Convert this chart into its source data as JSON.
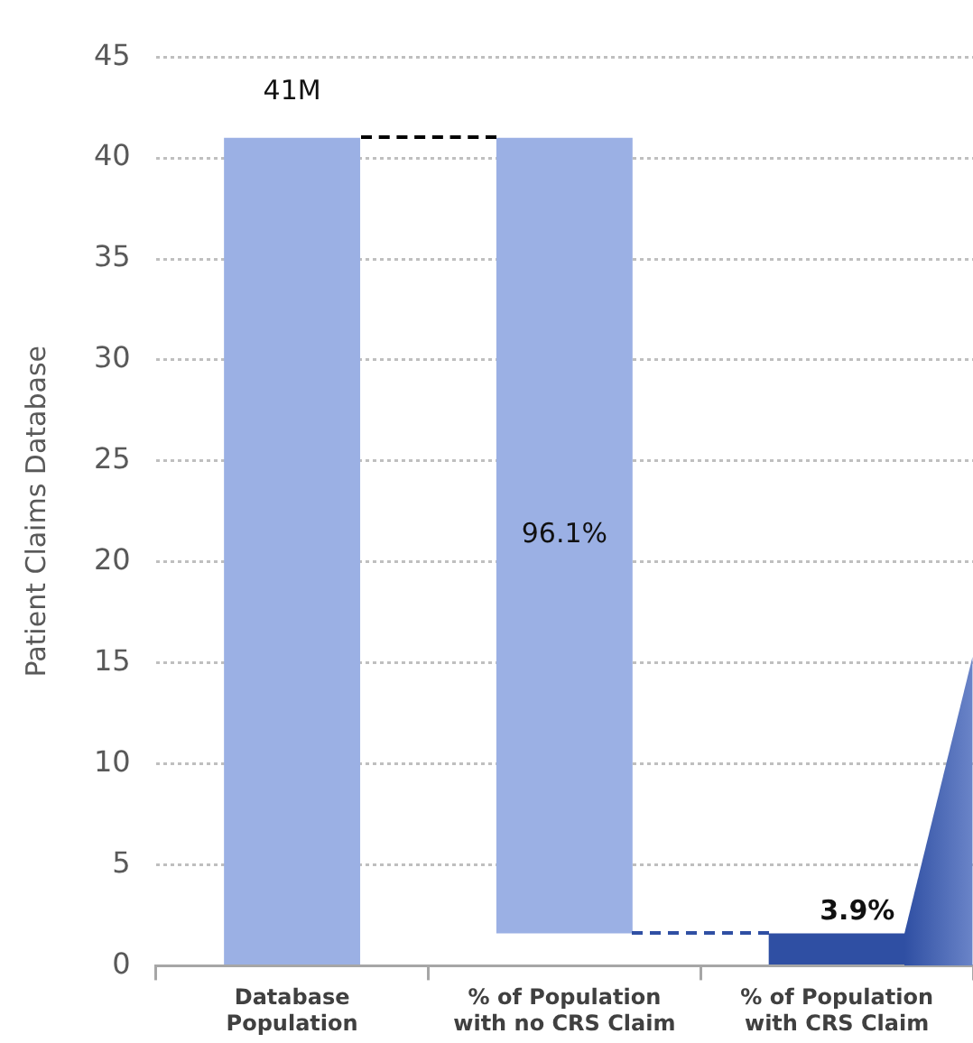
{
  "chart_data": {
    "type": "bar",
    "ylabel": "Patient Claims Database",
    "categories": [
      "Database\nPopulation",
      "% of Population\nwith no CRS Claim",
      "% of Population\nwith CRS Claim"
    ],
    "values": [
      41,
      39.4,
      1.6
    ],
    "base": [
      0,
      1.6,
      0
    ],
    "colors": [
      "#9bb0e4",
      "#9bb0e4",
      "#2f4fa3"
    ],
    "annotations": [
      {
        "text": "41M",
        "x": "Database\nPopulation",
        "y": 41
      },
      "96.1%",
      {
        "text": "3.9%",
        "x": "% of Population\nwith CRS Claim",
        "y": 1.6
      }
    ],
    "ylim": [
      0,
      45
    ],
    "yticks": [
      0,
      5,
      10,
      15,
      20,
      25,
      30,
      35,
      40,
      45
    ],
    "grid": "y"
  }
}
